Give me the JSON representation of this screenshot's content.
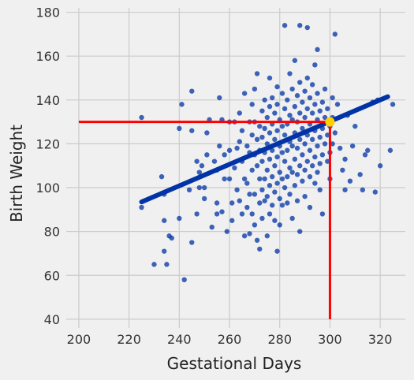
{
  "chart_data": {
    "type": "scatter",
    "xlabel": "Gestational Days",
    "ylabel": "Birth Weight",
    "xlim": [
      195,
      330
    ],
    "ylim": [
      36,
      182
    ],
    "xticks": [
      200,
      220,
      240,
      260,
      280,
      300,
      320
    ],
    "yticks": [
      40,
      60,
      80,
      100,
      120,
      140,
      160,
      180
    ],
    "grid": true,
    "colors": {
      "background": "#f0f0f0",
      "grid": "#cbcbcb",
      "points": "#0033a6",
      "fit_line": "#0033a6",
      "guide_lines": "#ff0000",
      "highlight_point": "#ffd000"
    },
    "regression_line": {
      "x": [
        225,
        323
      ],
      "y": [
        93.5,
        141.5
      ]
    },
    "guide_lines": {
      "x": 300,
      "y": 130
    },
    "highlight_point": {
      "x": 300,
      "y": 130
    },
    "points": [
      [
        225,
        132
      ],
      [
        225,
        91
      ],
      [
        230,
        65
      ],
      [
        233,
        105
      ],
      [
        234,
        85
      ],
      [
        234,
        71
      ],
      [
        234,
        97
      ],
      [
        235,
        65
      ],
      [
        236,
        78
      ],
      [
        237,
        77
      ],
      [
        240,
        86
      ],
      [
        240,
        127
      ],
      [
        241,
        138
      ],
      [
        242,
        58
      ],
      [
        244,
        99
      ],
      [
        245,
        75
      ],
      [
        245,
        126
      ],
      [
        245,
        144
      ],
      [
        247,
        112
      ],
      [
        247,
        88
      ],
      [
        248,
        107
      ],
      [
        248,
        100
      ],
      [
        249,
        110
      ],
      [
        250,
        95
      ],
      [
        250,
        100
      ],
      [
        251,
        115
      ],
      [
        251,
        125
      ],
      [
        252,
        131
      ],
      [
        253,
        82
      ],
      [
        254,
        112
      ],
      [
        255,
        93
      ],
      [
        255,
        108
      ],
      [
        255,
        88
      ],
      [
        256,
        119
      ],
      [
        256,
        141
      ],
      [
        257,
        89
      ],
      [
        257,
        131
      ],
      [
        258,
        104
      ],
      [
        258,
        115
      ],
      [
        259,
        80
      ],
      [
        260,
        130
      ],
      [
        260,
        104
      ],
      [
        260,
        117
      ],
      [
        261,
        93
      ],
      [
        261,
        85
      ],
      [
        262,
        130
      ],
      [
        262,
        109
      ],
      [
        263,
        118
      ],
      [
        263,
        99
      ],
      [
        264,
        134
      ],
      [
        264,
        94
      ],
      [
        264,
        121
      ],
      [
        265,
        112
      ],
      [
        265,
        88
      ],
      [
        265,
        126
      ],
      [
        266,
        78
      ],
      [
        266,
        104
      ],
      [
        266,
        143
      ],
      [
        267,
        102
      ],
      [
        267,
        91
      ],
      [
        267,
        119
      ],
      [
        268,
        130
      ],
      [
        268,
        116
      ],
      [
        268,
        79
      ],
      [
        268,
        97
      ],
      [
        269,
        138
      ],
      [
        269,
        124
      ],
      [
        269,
        108
      ],
      [
        269,
        88
      ],
      [
        270,
        145
      ],
      [
        270,
        130
      ],
      [
        270,
        115
      ],
      [
        270,
        97
      ],
      [
        270,
        83
      ],
      [
        271,
        122
      ],
      [
        271,
        110
      ],
      [
        271,
        76
      ],
      [
        271,
        152
      ],
      [
        272,
        128
      ],
      [
        272,
        117
      ],
      [
        272,
        104
      ],
      [
        272,
        93
      ],
      [
        272,
        72
      ],
      [
        273,
        135
      ],
      [
        273,
        123
      ],
      [
        273,
        112
      ],
      [
        273,
        99
      ],
      [
        273,
        86
      ],
      [
        274,
        140
      ],
      [
        274,
        127
      ],
      [
        274,
        116
      ],
      [
        274,
        104
      ],
      [
        274,
        94
      ],
      [
        275,
        132
      ],
      [
        275,
        120
      ],
      [
        275,
        108
      ],
      [
        275,
        96
      ],
      [
        275,
        78
      ],
      [
        276,
        150
      ],
      [
        276,
        137
      ],
      [
        276,
        125
      ],
      [
        276,
        113
      ],
      [
        276,
        101
      ],
      [
        276,
        88
      ],
      [
        277,
        141
      ],
      [
        277,
        129
      ],
      [
        277,
        117
      ],
      [
        277,
        105
      ],
      [
        277,
        92
      ],
      [
        278,
        134
      ],
      [
        278,
        122
      ],
      [
        278,
        110
      ],
      [
        278,
        98
      ],
      [
        278,
        85
      ],
      [
        279,
        146
      ],
      [
        279,
        138
      ],
      [
        279,
        126
      ],
      [
        279,
        114
      ],
      [
        279,
        102
      ],
      [
        279,
        71
      ],
      [
        280,
        131
      ],
      [
        280,
        119
      ],
      [
        280,
        107
      ],
      [
        280,
        95
      ],
      [
        280,
        83
      ],
      [
        281,
        143
      ],
      [
        281,
        128
      ],
      [
        281,
        116
      ],
      [
        281,
        104
      ],
      [
        281,
        92
      ],
      [
        282,
        174
      ],
      [
        282,
        136
      ],
      [
        282,
        124
      ],
      [
        282,
        112
      ],
      [
        282,
        100
      ],
      [
        283,
        140
      ],
      [
        283,
        129
      ],
      [
        283,
        117
      ],
      [
        283,
        105
      ],
      [
        283,
        93
      ],
      [
        284,
        152
      ],
      [
        284,
        133
      ],
      [
        284,
        121
      ],
      [
        284,
        109
      ],
      [
        284,
        97
      ],
      [
        285,
        145
      ],
      [
        285,
        131
      ],
      [
        285,
        119
      ],
      [
        285,
        107
      ],
      [
        285,
        86
      ],
      [
        286,
        158
      ],
      [
        286,
        137
      ],
      [
        286,
        125
      ],
      [
        286,
        113
      ],
      [
        286,
        101
      ],
      [
        287,
        142
      ],
      [
        287,
        130
      ],
      [
        287,
        118
      ],
      [
        287,
        106
      ],
      [
        287,
        94
      ],
      [
        288,
        174
      ],
      [
        288,
        148
      ],
      [
        288,
        134
      ],
      [
        288,
        122
      ],
      [
        288,
        110
      ],
      [
        288,
        80
      ],
      [
        289,
        139
      ],
      [
        289,
        127
      ],
      [
        289,
        115
      ],
      [
        289,
        103
      ],
      [
        290,
        144
      ],
      [
        290,
        132
      ],
      [
        290,
        120
      ],
      [
        290,
        108
      ],
      [
        290,
        96
      ],
      [
        291,
        173
      ],
      [
        291,
        150
      ],
      [
        291,
        136
      ],
      [
        291,
        124
      ],
      [
        291,
        112
      ],
      [
        292,
        141
      ],
      [
        292,
        129
      ],
      [
        292,
        117
      ],
      [
        292,
        105
      ],
      [
        292,
        91
      ],
      [
        293,
        147
      ],
      [
        293,
        134
      ],
      [
        293,
        122
      ],
      [
        293,
        110
      ],
      [
        294,
        156
      ],
      [
        294,
        138
      ],
      [
        294,
        126
      ],
      [
        294,
        114
      ],
      [
        294,
        102
      ],
      [
        295,
        163
      ],
      [
        295,
        143
      ],
      [
        295,
        131
      ],
      [
        295,
        119
      ],
      [
        295,
        107
      ],
      [
        296,
        135
      ],
      [
        296,
        123
      ],
      [
        296,
        111
      ],
      [
        296,
        99
      ],
      [
        297,
        139
      ],
      [
        297,
        127
      ],
      [
        297,
        115
      ],
      [
        297,
        88
      ],
      [
        298,
        145
      ],
      [
        298,
        132
      ],
      [
        298,
        120
      ],
      [
        299,
        136
      ],
      [
        299,
        124
      ],
      [
        299,
        112
      ],
      [
        300,
        128
      ],
      [
        300,
        116
      ],
      [
        300,
        104
      ],
      [
        301,
        141
      ],
      [
        301,
        132
      ],
      [
        301,
        120
      ],
      [
        302,
        170
      ],
      [
        302,
        125
      ],
      [
        303,
        138
      ],
      [
        304,
        118
      ],
      [
        305,
        108
      ],
      [
        306,
        99
      ],
      [
        306,
        113
      ],
      [
        307,
        133
      ],
      [
        308,
        103
      ],
      [
        309,
        119
      ],
      [
        310,
        128
      ],
      [
        312,
        106
      ],
      [
        313,
        99
      ],
      [
        314,
        115
      ],
      [
        315,
        117
      ],
      [
        317,
        139
      ],
      [
        318,
        98
      ],
      [
        319,
        140
      ],
      [
        320,
        110
      ],
      [
        324,
        117
      ],
      [
        325,
        138
      ]
    ]
  }
}
